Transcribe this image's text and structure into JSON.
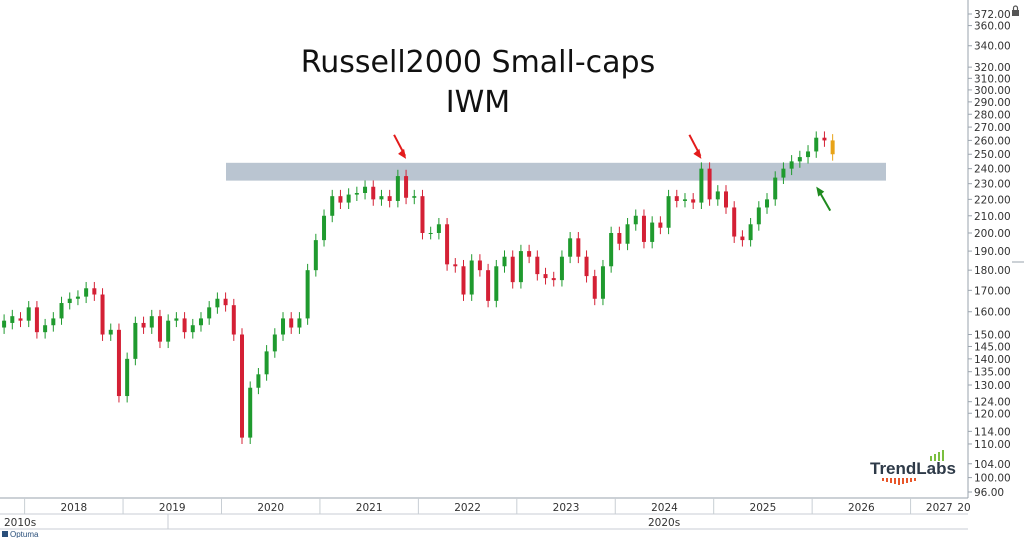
{
  "chart_data": {
    "type": "candlestick",
    "title": "Russell2000 Small-caps",
    "subtitle": "IWM",
    "y_scale": "log",
    "ylim": [
      96,
      372
    ],
    "xlim": [
      "2017-10",
      "2027-08"
    ],
    "y_tick_labels": [
      "372.00",
      "360.00",
      "340.00",
      "320.00",
      "310.00",
      "300.00",
      "290.00",
      "280.00",
      "270.00",
      "260.00",
      "250.00",
      "240.00",
      "230.00",
      "220.00",
      "210.00",
      "200.00",
      "190.00",
      "180.00",
      "170.00",
      "160.00",
      "150.00",
      "145.00",
      "140.00",
      "135.00",
      "130.00",
      "124.00",
      "120.00",
      "114.00",
      "110.00",
      "104.00",
      "100.00",
      "96.00"
    ],
    "x_tick_labels": [
      "2018",
      "2019",
      "2020",
      "2021",
      "2022",
      "2023",
      "2024",
      "2025",
      "2026",
      "2027",
      "20"
    ],
    "era_labels": [
      "2010s",
      "2020s"
    ],
    "resistance_zone": [
      232,
      244
    ],
    "annotations": [
      {
        "type": "arrow",
        "color": "#e31b1b",
        "date": "2021-11",
        "price": 244
      },
      {
        "type": "arrow",
        "color": "#e31b1b",
        "date": "2024-11",
        "price": 244
      },
      {
        "type": "arrow",
        "color": "#1f8a1f",
        "date": "2026-01",
        "price": 232
      }
    ],
    "series": [
      {
        "values": [
          [
            "2017-10",
            153,
            156
          ],
          [
            "2017-11",
            155,
            158
          ],
          [
            "2017-12",
            157,
            156
          ],
          [
            "2018-01",
            156,
            162
          ],
          [
            "2018-02",
            162,
            151
          ],
          [
            "2018-03",
            151,
            154
          ],
          [
            "2018-04",
            154,
            157
          ],
          [
            "2018-05",
            157,
            164
          ],
          [
            "2018-06",
            164,
            166
          ],
          [
            "2018-07",
            166,
            167
          ],
          [
            "2018-08",
            167,
            171
          ],
          [
            "2018-09",
            171,
            168
          ],
          [
            "2018-10",
            168,
            150
          ],
          [
            "2018-11",
            150,
            152
          ],
          [
            "2018-12",
            152,
            126
          ],
          [
            "2019-01",
            126,
            140
          ],
          [
            "2019-02",
            140,
            155
          ],
          [
            "2019-03",
            155,
            153
          ],
          [
            "2019-04",
            153,
            158
          ],
          [
            "2019-05",
            158,
            147
          ],
          [
            "2019-06",
            147,
            156
          ],
          [
            "2019-07",
            156,
            157
          ],
          [
            "2019-08",
            157,
            151
          ],
          [
            "2019-09",
            151,
            154
          ],
          [
            "2019-10",
            154,
            157
          ],
          [
            "2019-11",
            157,
            162
          ],
          [
            "2019-12",
            162,
            166
          ],
          [
            "2020-01",
            166,
            163
          ],
          [
            "2020-02",
            163,
            150
          ],
          [
            "2020-03",
            150,
            112
          ],
          [
            "2020-04",
            112,
            129
          ],
          [
            "2020-05",
            129,
            134
          ],
          [
            "2020-06",
            134,
            143
          ],
          [
            "2020-07",
            143,
            150
          ],
          [
            "2020-08",
            150,
            157
          ],
          [
            "2020-09",
            157,
            153
          ],
          [
            "2020-10",
            153,
            157
          ],
          [
            "2020-11",
            157,
            180
          ],
          [
            "2020-12",
            180,
            196
          ],
          [
            "2021-01",
            196,
            210
          ],
          [
            "2021-02",
            210,
            222
          ],
          [
            "2021-03",
            222,
            218
          ],
          [
            "2021-04",
            218,
            223
          ],
          [
            "2021-05",
            223,
            224
          ],
          [
            "2021-06",
            224,
            228
          ],
          [
            "2021-07",
            228,
            220
          ],
          [
            "2021-08",
            220,
            222
          ],
          [
            "2021-09",
            222,
            219
          ],
          [
            "2021-10",
            219,
            235
          ],
          [
            "2021-11",
            235,
            221
          ],
          [
            "2021-12",
            221,
            222
          ],
          [
            "2022-01",
            222,
            200
          ],
          [
            "2022-02",
            200,
            200
          ],
          [
            "2022-03",
            200,
            205
          ],
          [
            "2022-04",
            205,
            183
          ],
          [
            "2022-05",
            183,
            182
          ],
          [
            "2022-06",
            182,
            168
          ],
          [
            "2022-07",
            168,
            185
          ],
          [
            "2022-08",
            185,
            180
          ],
          [
            "2022-09",
            180,
            165
          ],
          [
            "2022-10",
            165,
            182
          ],
          [
            "2022-11",
            182,
            187
          ],
          [
            "2022-12",
            187,
            174
          ],
          [
            "2023-01",
            174,
            190
          ],
          [
            "2023-02",
            190,
            187
          ],
          [
            "2023-03",
            187,
            178
          ],
          [
            "2023-04",
            178,
            176
          ],
          [
            "2023-05",
            176,
            175
          ],
          [
            "2023-06",
            175,
            187
          ],
          [
            "2023-07",
            187,
            197
          ],
          [
            "2023-08",
            197,
            187
          ],
          [
            "2023-09",
            187,
            177
          ],
          [
            "2023-10",
            177,
            166
          ],
          [
            "2023-11",
            166,
            182
          ],
          [
            "2023-12",
            182,
            200
          ],
          [
            "2024-01",
            200,
            194
          ],
          [
            "2024-02",
            194,
            205
          ],
          [
            "2024-03",
            205,
            210
          ],
          [
            "2024-04",
            210,
            195
          ],
          [
            "2024-05",
            195,
            206
          ],
          [
            "2024-06",
            206,
            203
          ],
          [
            "2024-07",
            203,
            222
          ],
          [
            "2024-08",
            222,
            219
          ],
          [
            "2024-09",
            219,
            220
          ],
          [
            "2024-10",
            220,
            218
          ],
          [
            "2024-11",
            218,
            240
          ],
          [
            "2024-12",
            240,
            220
          ],
          [
            "2025-01",
            220,
            225
          ],
          [
            "2025-02",
            225,
            215
          ],
          [
            "2025-03",
            215,
            198
          ],
          [
            "2025-04",
            198,
            196
          ],
          [
            "2025-05",
            196,
            205
          ],
          [
            "2025-06",
            205,
            215
          ],
          [
            "2025-07",
            215,
            220
          ],
          [
            "2025-08",
            220,
            234
          ],
          [
            "2025-09",
            234,
            240
          ],
          [
            "2025-10",
            240,
            245
          ],
          [
            "2025-11",
            245,
            248
          ],
          [
            "2025-12",
            248,
            252
          ],
          [
            "2026-01",
            252,
            262
          ],
          [
            "2026-02",
            262,
            260
          ],
          [
            "2026-03",
            260,
            250
          ]
        ]
      }
    ]
  },
  "logo": {
    "name": "TrendLabs"
  },
  "footer_brand": "Optuma",
  "colors": {
    "up": "#1f9a2e",
    "down": "#d42035",
    "zone": "#a9b6c5",
    "red_arrow": "#e31b1b",
    "green_arrow": "#1f8a1f",
    "last_candle": "#e8a317"
  }
}
